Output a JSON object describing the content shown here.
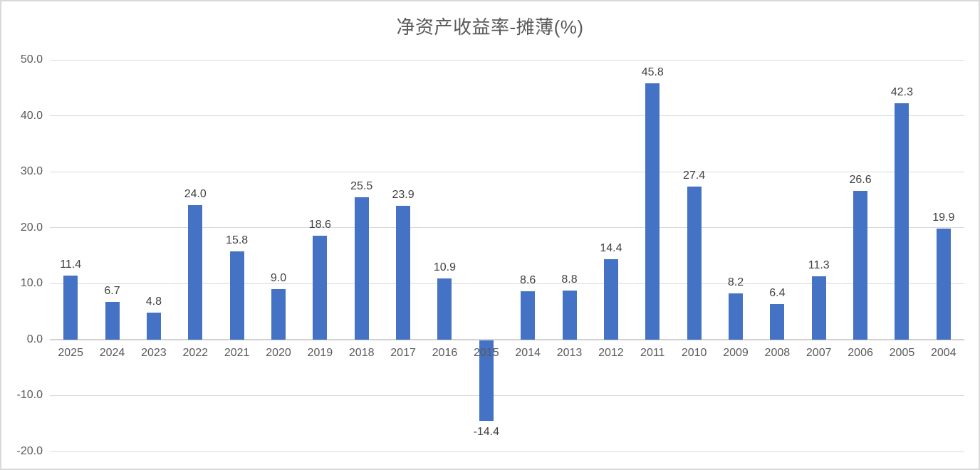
{
  "window": {
    "background": "#ffffff",
    "border_color": "#d9d9d9"
  },
  "chart_data": {
    "type": "bar",
    "title": "净资产收益率-摊薄(%)",
    "categories": [
      "2025",
      "2024",
      "2023",
      "2022",
      "2021",
      "2020",
      "2019",
      "2018",
      "2017",
      "2016",
      "2015",
      "2014",
      "2013",
      "2012",
      "2011",
      "2010",
      "2009",
      "2008",
      "2007",
      "2006",
      "2005",
      "2004"
    ],
    "values": [
      11.4,
      6.7,
      4.8,
      24.0,
      15.8,
      9.0,
      18.6,
      25.5,
      23.9,
      10.9,
      -14.4,
      8.6,
      8.8,
      14.4,
      45.8,
      27.4,
      8.2,
      6.4,
      11.3,
      26.6,
      42.3,
      19.9
    ],
    "data_labels": [
      "11.4",
      "6.7",
      "4.8",
      "24.0",
      "15.8",
      "9.0",
      "18.6",
      "25.5",
      "23.9",
      "10.9",
      "-14.4",
      "8.6",
      "8.8",
      "14.4",
      "45.8",
      "27.4",
      "8.2",
      "6.4",
      "11.3",
      "26.6",
      "42.3",
      "19.9"
    ],
    "xlabel": "",
    "ylabel": "",
    "ylim": [
      -20,
      50
    ],
    "yticks": [
      50,
      40,
      30,
      20,
      10,
      0,
      -10,
      -20
    ],
    "ytick_labels": [
      "50.0",
      "40.0",
      "30.0",
      "20.0",
      "10.0",
      "0.0",
      "-10.0",
      "-20.0"
    ],
    "grid": true,
    "legend": false,
    "colors": {
      "bar": "#4472C4",
      "gridline": "#D9D9D9",
      "axis_line": "#D2D2D2",
      "title_text": "#595959",
      "axis_text": "#595959",
      "data_label_text": "#404040"
    }
  }
}
